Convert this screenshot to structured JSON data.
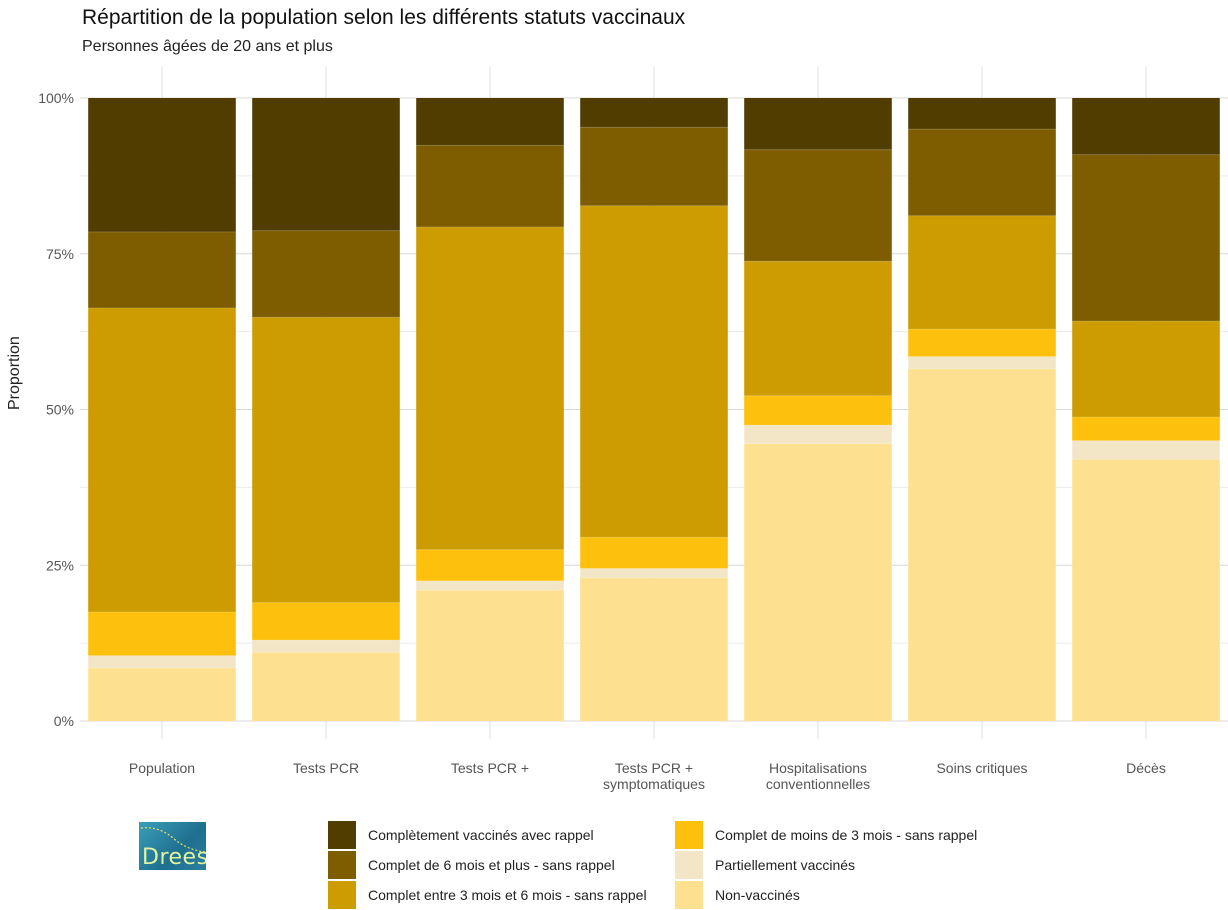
{
  "title": "Répartition de la population selon les différents statuts vaccinaux",
  "subtitle": "Personnes âgées de 20 ans et plus",
  "logo_text": "Drees",
  "chart_data": {
    "type": "bar",
    "stacked": true,
    "normalized": true,
    "ylabel": "Proportion",
    "xlabel": "",
    "ylim": [
      0,
      100
    ],
    "yticks": [
      "0%",
      "25%",
      "50%",
      "75%",
      "100%"
    ],
    "grid": true,
    "legend_position": "bottom",
    "categories": [
      "Population",
      "Tests PCR",
      "Tests PCR +",
      "Tests PCR +\nsymptomatiques",
      "Hospitalisations\nconventionnelles",
      "Soins critiques",
      "Décès"
    ],
    "series": [
      {
        "name": "Non-vaccinés",
        "color": "#fde191",
        "values": [
          8.5,
          11.0,
          21.0,
          23.0,
          44.5,
          56.5,
          42.0
        ]
      },
      {
        "name": "Partiellement vaccinés",
        "color": "#f2e6c6",
        "values": [
          2.0,
          2.0,
          1.5,
          1.5,
          3.0,
          2.0,
          3.0
        ]
      },
      {
        "name": "Complet de moins de 3 mois - sans rappel",
        "color": "#fdc10d",
        "values": [
          7.0,
          6.0,
          5.0,
          5.0,
          4.7,
          4.4,
          3.8
        ]
      },
      {
        "name": "Complet entre 3 mois et 6 mois - sans rappel",
        "color": "#cc9c00",
        "values": [
          48.8,
          45.8,
          51.8,
          53.2,
          21.6,
          18.2,
          15.4
        ]
      },
      {
        "name": "Complet de 6 mois et plus - sans rappel",
        "color": "#7d5d00",
        "values": [
          12.2,
          13.9,
          13.1,
          12.6,
          17.9,
          13.9,
          26.7
        ]
      },
      {
        "name": "Complètement vaccinés avec rappel",
        "color": "#523d00",
        "values": [
          21.5,
          21.3,
          7.6,
          4.7,
          8.3,
          5.0,
          9.1
        ]
      }
    ],
    "legend_order": [
      "Complètement vaccinés avec rappel",
      "Complet de 6 mois et plus - sans rappel",
      "Complet entre 3 mois et 6 mois - sans rappel",
      "Complet de moins de 3 mois - sans rappel",
      "Partiellement vaccinés",
      "Non-vaccinés"
    ]
  }
}
